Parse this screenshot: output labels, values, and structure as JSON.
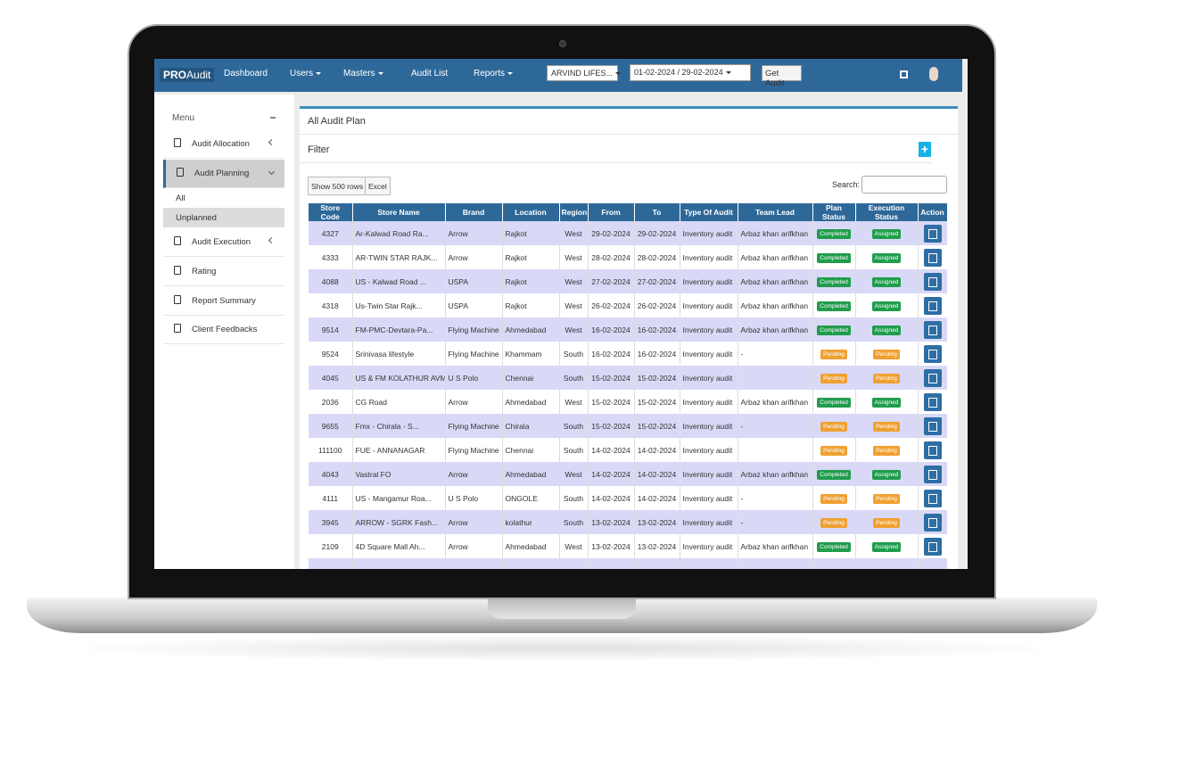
{
  "nav": {
    "brand_bold": "PRO",
    "brand": "Audit",
    "items": [
      "Dashboard",
      "Users",
      "Masters",
      "Audit List",
      "Reports"
    ],
    "store_select": "ARVIND LIFES...",
    "date_range": "01-02-2024 / 29-02-2024",
    "button": "Get Audit"
  },
  "sidebar": {
    "title": "Menu",
    "items": [
      "Audit Allocation",
      "Audit Planning",
      "Audit Execution",
      "Rating",
      "Report Summary",
      "Client Feedbacks"
    ],
    "subitems": [
      "All",
      "Unplanned"
    ]
  },
  "panel": {
    "title": "All Audit Plan",
    "filter": "Filter",
    "show_rows": "Show 500 rows",
    "excel": "Excel",
    "search": "Search:"
  },
  "table": {
    "columns": [
      "Store Code",
      "Store Name",
      "Brand",
      "Location",
      "Region",
      "From",
      "To",
      "Type Of Audit",
      "Team Lead",
      "Plan Status",
      "Execution Status",
      "Action"
    ],
    "rows": [
      [
        "4327",
        "Ar-Kalwad Road Ra...",
        "Arrow",
        "Rajkot",
        "West",
        "29-02-2024",
        "29-02-2024",
        "Inventory audit",
        "Arbaz khan arifkhan",
        "Completed",
        "Assigned"
      ],
      [
        "4333",
        "AR-TWIN STAR RAJK...",
        "Arrow",
        "Rajkot",
        "West",
        "28-02-2024",
        "28-02-2024",
        "Inventory audit",
        "Arbaz khan arifkhan",
        "Completed",
        "Assigned"
      ],
      [
        "4088",
        "US - Kalwad Road ...",
        "USPA",
        "Rajkot",
        "West",
        "27-02-2024",
        "27-02-2024",
        "Inventory audit",
        "Arbaz khan arifkhan",
        "Completed",
        "Assigned"
      ],
      [
        "4318",
        "Us-Twin Star Rajk...",
        "USPA",
        "Rajkot",
        "West",
        "26-02-2024",
        "26-02-2024",
        "Inventory audit",
        "Arbaz khan arifkhan",
        "Completed",
        "Assigned"
      ],
      [
        "9514",
        "FM-PMC-Devtara-Pa...",
        "Flying Machine",
        "Ahmedabad",
        "West",
        "16-02-2024",
        "16-02-2024",
        "Inventory audit",
        "Arbaz khan arifkhan",
        "Completed",
        "Assigned"
      ],
      [
        "9524",
        "Srinivasa lifestyle",
        "Flying Machine",
        "Khammam",
        "South",
        "16-02-2024",
        "16-02-2024",
        "Inventory audit",
        "-",
        "Pending",
        "Pending"
      ],
      [
        "4045",
        "US & FM KOLATHUR AVM",
        "U S Polo",
        "Chennai",
        "South",
        "15-02-2024",
        "15-02-2024",
        "Inventory audit",
        null,
        "Pending",
        "Pending"
      ],
      [
        "2036",
        "CG Road",
        "Arrow",
        "Ahmedabad",
        "West",
        "15-02-2024",
        "15-02-2024",
        "Inventory audit",
        "Arbaz khan arifkhan",
        "Completed",
        "Assigned"
      ],
      [
        "9655",
        "Fmx - Chirala - S...",
        "Flying Machine",
        "Chirala",
        "South",
        "15-02-2024",
        "15-02-2024",
        "Inventory audit",
        "-",
        "Pending",
        "Pending"
      ],
      [
        "111100",
        "FUE - ANNANAGAR",
        "Flying Machine",
        "Chennai",
        "South",
        "14-02-2024",
        "14-02-2024",
        "Inventory audit",
        null,
        "Pending",
        "Pending"
      ],
      [
        "4043",
        "Vastral FO",
        "Arrow",
        "Ahmedabad",
        "West",
        "14-02-2024",
        "14-02-2024",
        "Inventory audit",
        "Arbaz khan arifkhan",
        "Completed",
        "Assigned"
      ],
      [
        "4111",
        "US - Mangamur Roa...",
        "U S Polo",
        "ONGOLE",
        "South",
        "14-02-2024",
        "14-02-2024",
        "Inventory audit",
        "-",
        "Pending",
        "Pending"
      ],
      [
        "3945",
        "ARROW - SGRK Fash...",
        "Arrow",
        "kolathur",
        "South",
        "13-02-2024",
        "13-02-2024",
        "Inventory audit",
        "-",
        "Pending",
        "Pending"
      ],
      [
        "2109",
        "4D Square Mall Ah...",
        "Arrow",
        "Ahmedabad",
        "West",
        "13-02-2024",
        "13-02-2024",
        "Inventory audit",
        "Arbaz khan arifkhan",
        "Completed",
        "Assigned"
      ]
    ]
  }
}
